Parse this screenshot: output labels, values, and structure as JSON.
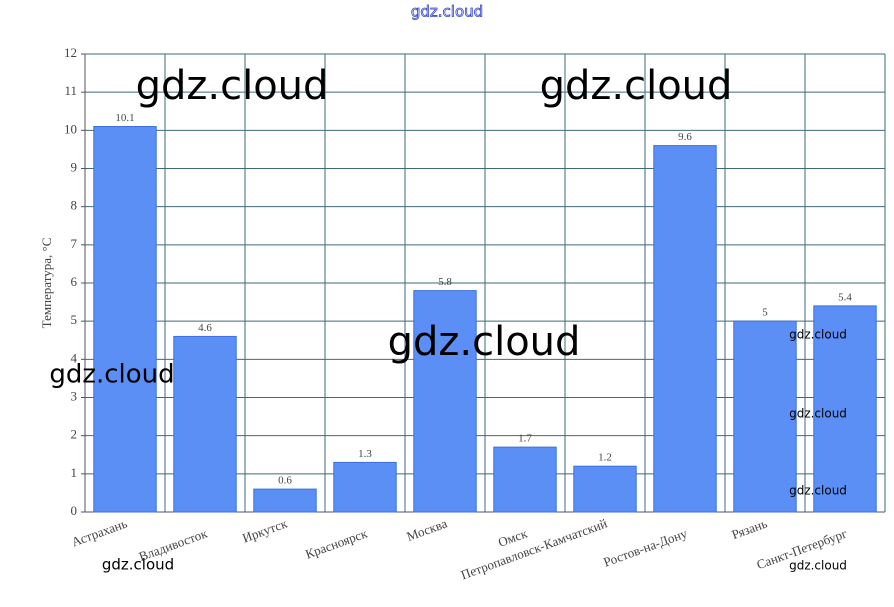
{
  "chart_data": {
    "type": "bar",
    "title": "gdz.cloud",
    "ylabel": "Температура, °C",
    "categories": [
      "Астрахань",
      "Владивосток",
      "Иркутск",
      "Красноярск",
      "Москва",
      "Омск",
      "Петропавловск-Камчатский",
      "Ростов-на-Дону",
      "Рязань",
      "Санкт-Петербург"
    ],
    "values": [
      10.1,
      4.6,
      0.6,
      1.3,
      5.8,
      1.7,
      1.2,
      9.6,
      5,
      5.4
    ],
    "color": "#5b8ff5",
    "ylim": [
      0,
      12
    ],
    "yticks": [
      0,
      1,
      2,
      3,
      4,
      5,
      6,
      7,
      8,
      9,
      10,
      11,
      12
    ],
    "grid": true,
    "annotations": [
      "gdz.cloud",
      "gdz.cloud",
      "gdz.cloud",
      "gdz.cloud",
      "gdz.cloud",
      "gdz.cloud",
      "gdz.cloud",
      "gdz.cloud",
      "gdz.cloud"
    ]
  }
}
